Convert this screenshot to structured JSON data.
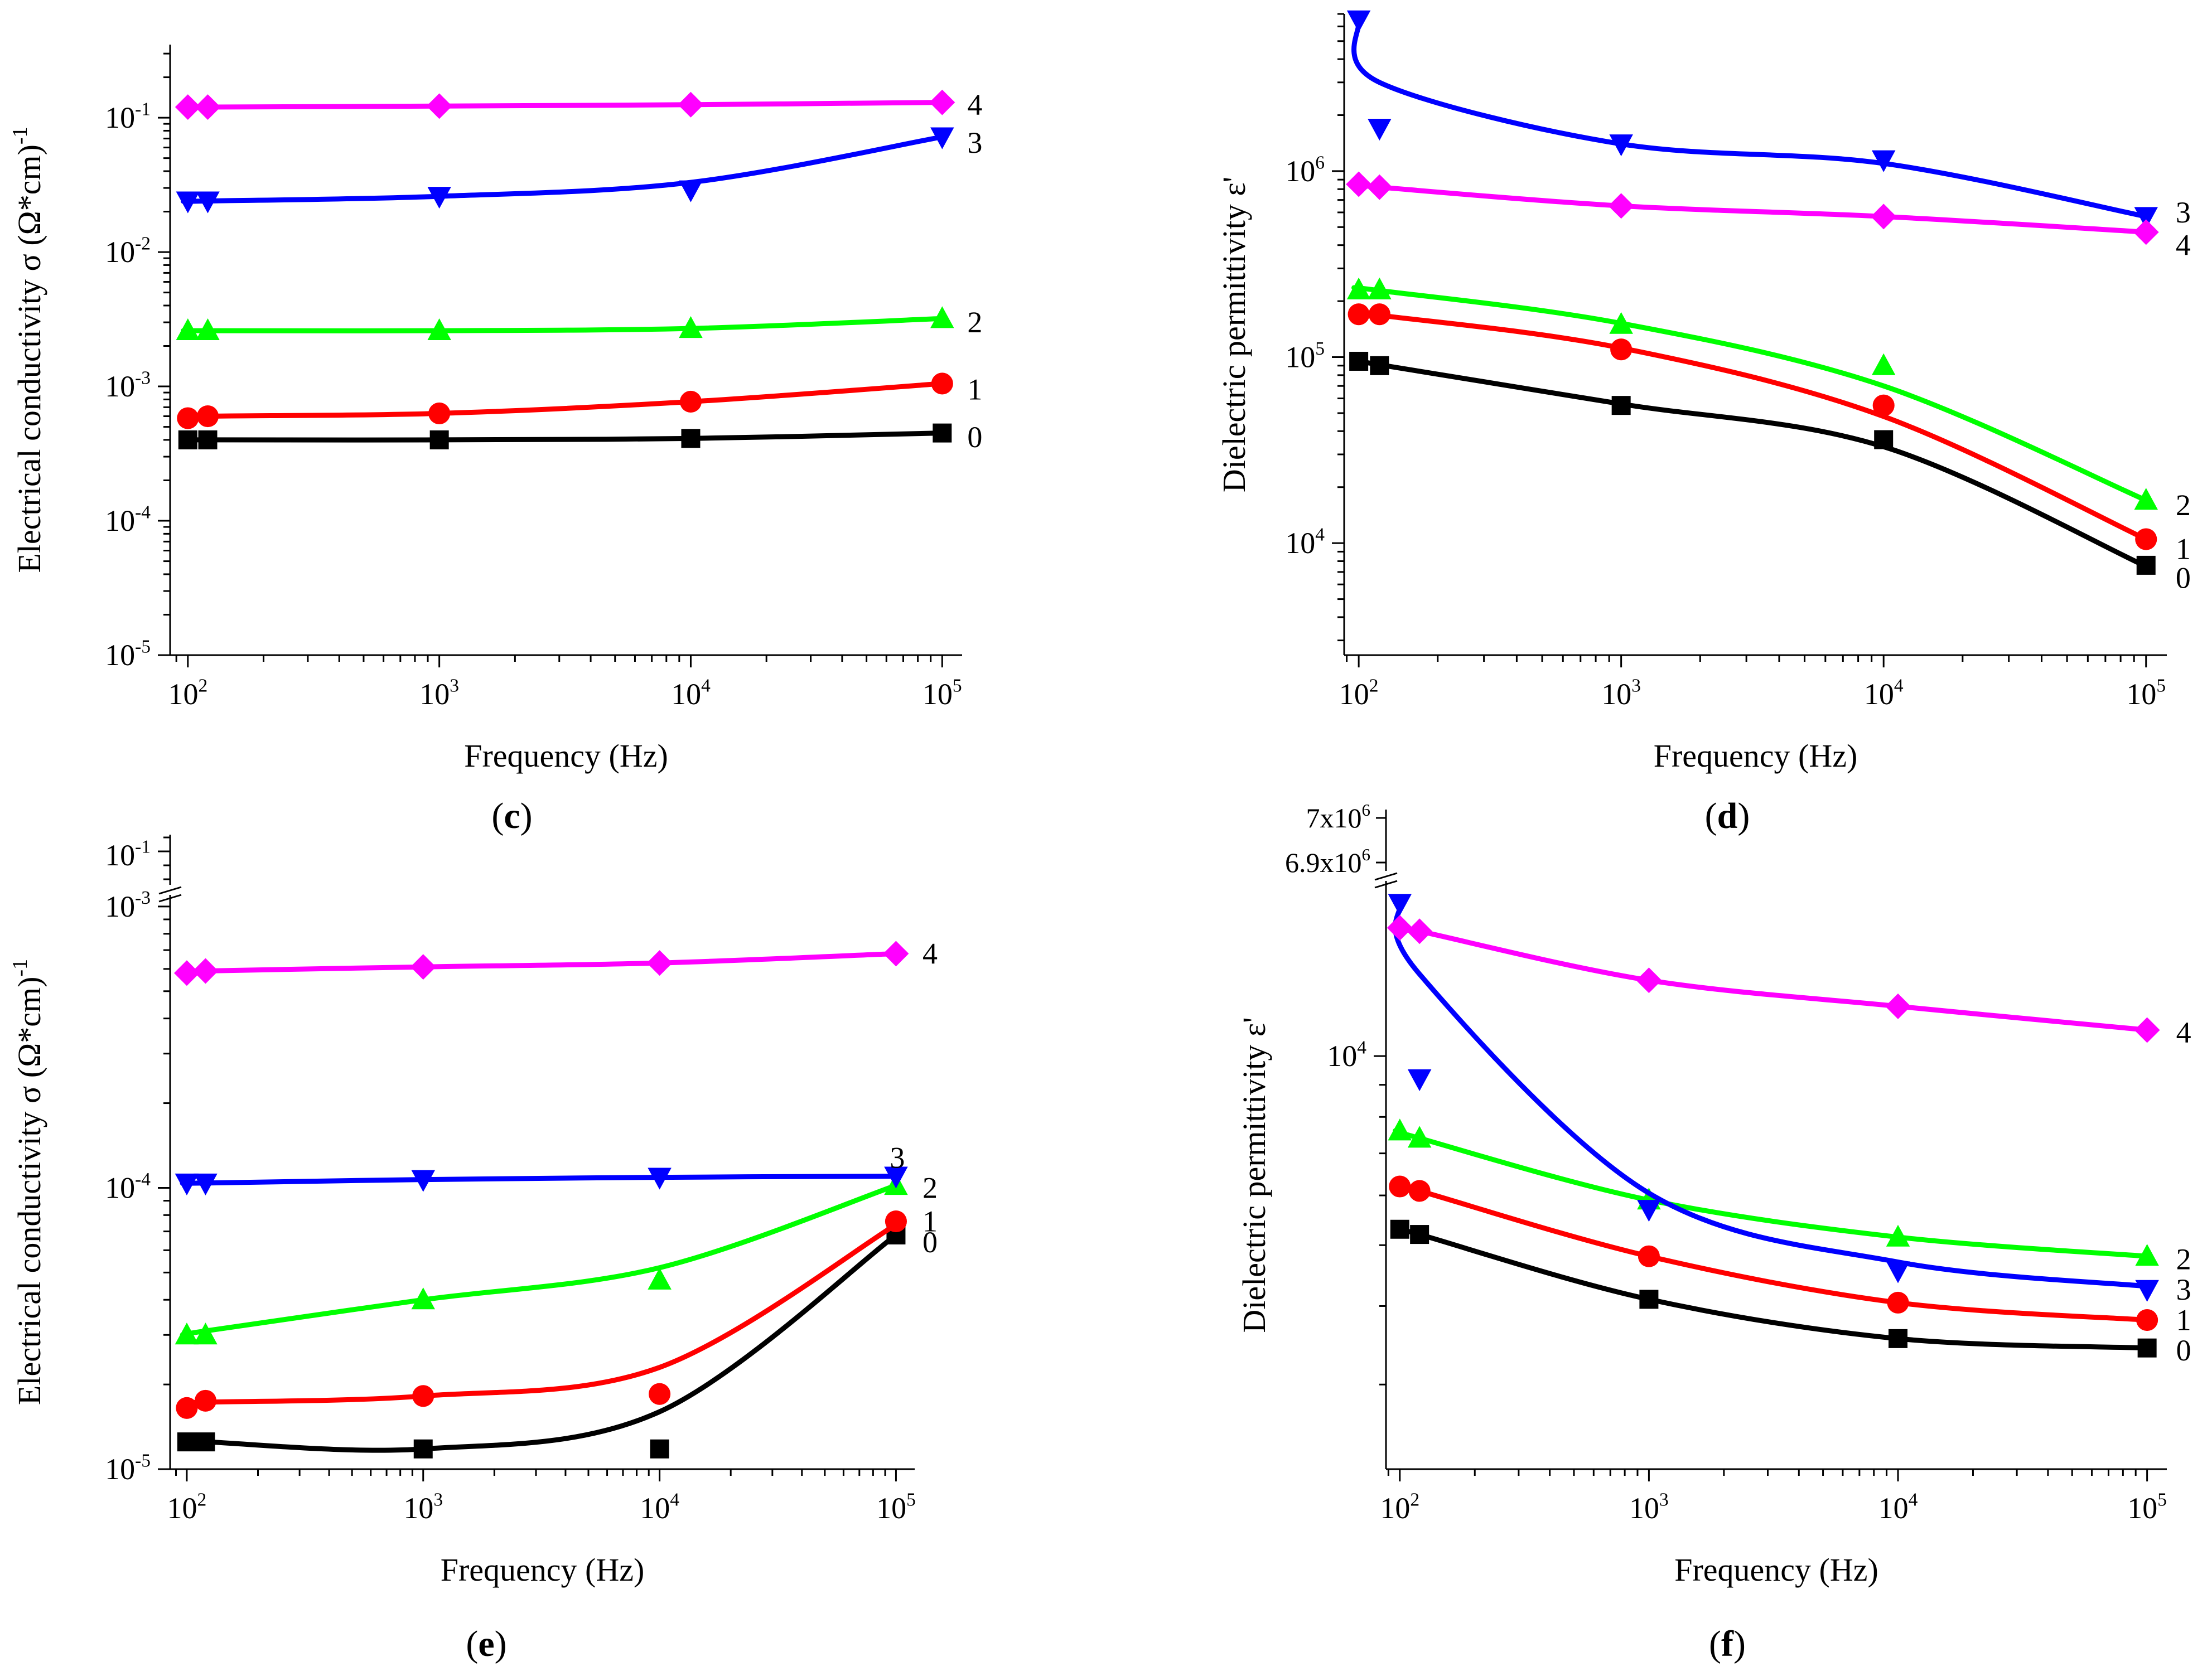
{
  "colors": {
    "0": "#000000",
    "1": "#ff0000",
    "2": "#00ff00",
    "3": "#0000ff",
    "4": "#ff00ff"
  },
  "markers": {
    "0": "square",
    "1": "circle",
    "2": "triangle-up",
    "3": "triangle-down",
    "4": "diamond"
  },
  "chart_data": [
    {
      "id": "c",
      "panel_label": "(c)",
      "label_letter": "c",
      "type": "line",
      "xlabel": "Frequency (Hz)",
      "ylabel": "Electrical conductivity σ (Ω*cm)",
      "ylabel_sup": "-1",
      "xscale": "log",
      "yscale": "log",
      "xlim": [
        85,
        120000
      ],
      "ylim": [
        1e-05,
        0.35
      ],
      "xticks": [
        {
          "v": 100,
          "b": "10",
          "s": "2"
        },
        {
          "v": 1000,
          "b": "10",
          "s": "3"
        },
        {
          "v": 10000,
          "b": "10",
          "s": "4"
        },
        {
          "v": 100000,
          "b": "10",
          "s": "5"
        }
      ],
      "yticks": [
        {
          "v": 1e-05,
          "b": "10",
          "s": "-5"
        },
        {
          "v": 0.0001,
          "b": "10",
          "s": "-4"
        },
        {
          "v": 0.001,
          "b": "10",
          "s": "-3"
        },
        {
          "v": 0.01,
          "b": "10",
          "s": "-2"
        },
        {
          "v": 0.1,
          "b": "10",
          "s": "-1"
        }
      ],
      "series": [
        {
          "name": "0",
          "label": "0",
          "x": [
            100,
            120,
            1000,
            10000,
            100000
          ],
          "y": [
            0.0004,
            0.0004,
            0.0004,
            0.00041,
            0.00045
          ],
          "curve": [
            0.0004,
            0.0004,
            0.0004,
            0.00041,
            0.00045
          ]
        },
        {
          "name": "1",
          "label": "1",
          "x": [
            100,
            120,
            1000,
            10000,
            100000
          ],
          "y": [
            0.00058,
            0.0006,
            0.00063,
            0.00077,
            0.00105
          ],
          "curve": [
            0.00058,
            0.0006,
            0.00063,
            0.00077,
            0.00105
          ]
        },
        {
          "name": "2",
          "label": "2",
          "x": [
            100,
            120,
            1000,
            10000,
            100000
          ],
          "y": [
            0.0026,
            0.0026,
            0.0026,
            0.0027,
            0.0032
          ],
          "curve": [
            0.0026,
            0.0026,
            0.0026,
            0.0027,
            0.0032
          ]
        },
        {
          "name": "3",
          "label": "3",
          "x": [
            100,
            120,
            1000,
            10000,
            100000
          ],
          "y": [
            0.024,
            0.024,
            0.026,
            0.029,
            0.072
          ],
          "curve": [
            0.024,
            0.024,
            0.026,
            0.033,
            0.072
          ]
        },
        {
          "name": "4",
          "label": "4",
          "x": [
            100,
            120,
            1000,
            10000,
            100000
          ],
          "y": [
            0.12,
            0.12,
            0.122,
            0.125,
            0.13
          ],
          "curve": [
            0.12,
            0.12,
            0.122,
            0.125,
            0.13
          ]
        }
      ]
    },
    {
      "id": "d",
      "panel_label": "(d)",
      "label_letter": "d",
      "type": "line",
      "xlabel": "Frequency (Hz)",
      "ylabel": "Dielectric permittivity  ε'",
      "ylabel_sup": "",
      "xscale": "log",
      "yscale": "log",
      "xlim": [
        88,
        120000
      ],
      "ylim": [
        2500,
        7000000
      ],
      "xticks": [
        {
          "v": 100,
          "b": "10",
          "s": "2"
        },
        {
          "v": 1000,
          "b": "10",
          "s": "3"
        },
        {
          "v": 10000,
          "b": "10",
          "s": "4"
        },
        {
          "v": 100000,
          "b": "10",
          "s": "5"
        }
      ],
      "yticks": [
        {
          "v": 10000,
          "b": "10",
          "s": "4"
        },
        {
          "v": 100000,
          "b": "10",
          "s": "5"
        },
        {
          "v": 1000000,
          "b": "10",
          "s": "6"
        }
      ],
      "series": [
        {
          "name": "0",
          "label": "0",
          "x": [
            100,
            120,
            1000,
            10000,
            100000
          ],
          "y": [
            95000,
            90000,
            55000,
            36000,
            7600
          ],
          "curve": [
            96000,
            91000,
            56000,
            33000,
            7500
          ]
        },
        {
          "name": "1",
          "label": "1",
          "x": [
            100,
            120,
            1000,
            10000,
            100000
          ],
          "y": [
            170000,
            170000,
            110000,
            55000,
            10500
          ],
          "curve": [
            172000,
            168000,
            112000,
            48000,
            10500
          ]
        },
        {
          "name": "2",
          "label": "2",
          "x": [
            100,
            120,
            1000,
            10000,
            100000
          ],
          "y": [
            230000,
            230000,
            150000,
            90000,
            17000
          ],
          "curve": [
            232000,
            228000,
            152000,
            70000,
            17000
          ]
        },
        {
          "name": "3",
          "label": "3",
          "x": [
            100,
            120,
            1000,
            10000,
            100000
          ],
          "y": [
            6500000,
            1700000,
            1400000,
            1150000,
            570000
          ],
          "curve": [
            6500000,
            3000000,
            1400000,
            1100000,
            570000
          ]
        },
        {
          "name": "4",
          "label": "4",
          "x": [
            100,
            120,
            1000,
            10000,
            100000
          ],
          "y": [
            850000,
            820000,
            650000,
            570000,
            470000
          ],
          "curve": [
            850000,
            820000,
            650000,
            570000,
            470000
          ]
        }
      ]
    },
    {
      "id": "e",
      "panel_label": "(e)",
      "label_letter": "e",
      "type": "line",
      "xlabel": "Frequency (Hz)",
      "ylabel": "Electrical conductivity σ (Ω*cm)",
      "ylabel_sup": "-1",
      "xscale": "log",
      "yscale": "log",
      "xlim": [
        85,
        120000
      ],
      "ylim": [
        1e-05,
        0.0011
      ],
      "axis_break": "between 10^-3 and 10^-1",
      "top_segment_tick": {
        "v": 0.1,
        "b": "10",
        "s": "-1"
      },
      "xticks": [
        {
          "v": 100,
          "b": "10",
          "s": "2"
        },
        {
          "v": 1000,
          "b": "10",
          "s": "3"
        },
        {
          "v": 10000,
          "b": "10",
          "s": "4"
        },
        {
          "v": 100000,
          "b": "10",
          "s": "5"
        }
      ],
      "yticks": [
        {
          "v": 1e-05,
          "b": "10",
          "s": "-5"
        },
        {
          "v": 0.0001,
          "b": "10",
          "s": "-4"
        },
        {
          "v": 0.001,
          "b": "10",
          "s": "-3"
        }
      ],
      "series": [
        {
          "name": "0",
          "label": "0",
          "x": [
            100,
            120,
            1000,
            10000,
            100000
          ],
          "y": [
            1.25e-05,
            1.25e-05,
            1.18e-05,
            1.18e-05,
            6.8e-05
          ],
          "curve": [
            1.26e-05,
            1.25e-05,
            1.18e-05,
            1.6e-05,
            6.8e-05
          ]
        },
        {
          "name": "1",
          "label": "1",
          "x": [
            100,
            120,
            1000,
            10000,
            100000
          ],
          "y": [
            1.65e-05,
            1.75e-05,
            1.82e-05,
            1.85e-05,
            7.6e-05
          ],
          "curve": [
            1.72e-05,
            1.73e-05,
            1.82e-05,
            2.3e-05,
            7.4e-05
          ]
        },
        {
          "name": "2",
          "label": "2",
          "x": [
            100,
            120,
            1000,
            10000,
            100000
          ],
          "y": [
            3e-05,
            3e-05,
            4e-05,
            4.7e-05,
            0.000102
          ],
          "curve": [
            3e-05,
            3.1e-05,
            4e-05,
            5.2e-05,
            0.000102
          ]
        },
        {
          "name": "3",
          "label": "3",
          "x": [
            100,
            120,
            1000,
            10000,
            100000
          ],
          "y": [
            0.000104,
            0.000104,
            0.000107,
            0.000109,
            0.00011
          ],
          "curve": [
            0.000104,
            0.000104,
            0.000107,
            0.000109,
            0.00011
          ]
        },
        {
          "name": "4",
          "label": "4",
          "x": [
            100,
            120,
            1000,
            10000,
            100000
          ],
          "y": [
            0.00058,
            0.00059,
            0.00061,
            0.00063,
            0.00068
          ],
          "curve": [
            0.00058,
            0.00059,
            0.00061,
            0.00063,
            0.00068
          ]
        }
      ]
    },
    {
      "id": "f",
      "panel_label": "(f)",
      "label_letter": "f",
      "type": "line",
      "xlabel": "Frequency (Hz)",
      "ylabel": "Dielectric permittivity  ε'",
      "ylabel_sup": "",
      "xscale": "log",
      "yscale": "log",
      "xlim": [
        88,
        120000
      ],
      "ylim": [
        2200,
        19000
      ],
      "axis_break": "between 19000 and 6.9x10^6",
      "top_segment_ticks": [
        {
          "b": "6.9x10",
          "s": "6"
        },
        {
          "b": "7x10",
          "s": "6"
        }
      ],
      "xticks": [
        {
          "v": 100,
          "b": "10",
          "s": "2"
        },
        {
          "v": 1000,
          "b": "10",
          "s": "3"
        },
        {
          "v": 10000,
          "b": "10",
          "s": "4"
        },
        {
          "v": 100000,
          "b": "10",
          "s": "5"
        }
      ],
      "yticks": [
        {
          "v": 10000,
          "b": "10",
          "s": "4"
        }
      ],
      "series": [
        {
          "name": "0",
          "label": "0",
          "x": [
            100,
            120,
            1000,
            10000,
            100000
          ],
          "y": [
            5300,
            5200,
            4100,
            3550,
            3430
          ],
          "curve": [
            5300,
            5200,
            4100,
            3550,
            3430
          ]
        },
        {
          "name": "1",
          "label": "1",
          "x": [
            100,
            120,
            1000,
            10000,
            100000
          ],
          "y": [
            6200,
            6100,
            4800,
            4050,
            3800
          ],
          "curve": [
            6200,
            6100,
            4800,
            4050,
            3800
          ]
        },
        {
          "name": "2",
          "label": "2",
          "x": [
            100,
            120,
            1000,
            10000,
            100000
          ],
          "y": [
            7600,
            7400,
            5900,
            5150,
            4800
          ],
          "curve": [
            7600,
            7400,
            5900,
            5150,
            4800
          ]
        },
        {
          "name": "3",
          "label": "3",
          "x": [
            100,
            120,
            1000,
            10000,
            100000
          ],
          "y": [
            17500,
            9200,
            5700,
            4550,
            4250
          ],
          "curve": [
            17500,
            13500,
            6050,
            4700,
            4300
          ]
        },
        {
          "name": "4",
          "label": "4",
          "x": [
            100,
            120,
            1000,
            10000,
            100000
          ],
          "y": [
            16000,
            15800,
            13200,
            12000,
            11000
          ],
          "curve": [
            16000,
            15800,
            13200,
            12000,
            11000
          ]
        }
      ]
    }
  ]
}
